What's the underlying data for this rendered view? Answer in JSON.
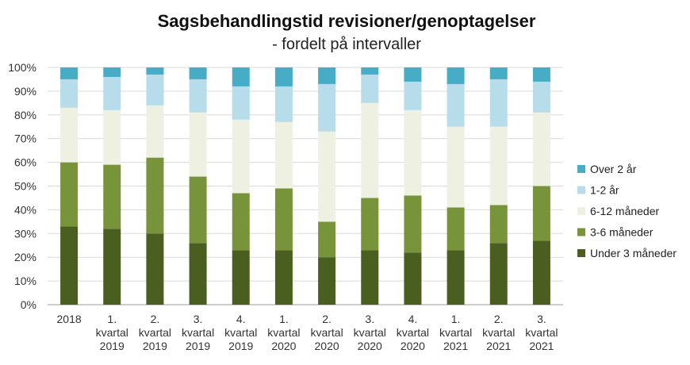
{
  "chart_data": {
    "type": "bar",
    "stacked": true,
    "title": "Sagsbehandlingstid revisioner/genoptagelser",
    "subtitle": "- fordelt på intervaller",
    "ylim": [
      0,
      100
    ],
    "ytick_labels": [
      "0%",
      "10%",
      "20%",
      "30%",
      "40%",
      "50%",
      "60%",
      "70%",
      "80%",
      "90%",
      "100%"
    ],
    "categories": [
      [
        "2018"
      ],
      [
        "1.",
        "kvartal",
        "2019"
      ],
      [
        "2.",
        "kvartal",
        "2019"
      ],
      [
        "3.",
        "kvartal",
        "2019"
      ],
      [
        "4.",
        "kvartal",
        "2019"
      ],
      [
        "1.",
        "kvartal",
        "2020"
      ],
      [
        "2.",
        "kvartal",
        "2020"
      ],
      [
        "3.",
        "kvartal",
        "2020"
      ],
      [
        "4.",
        "kvartal",
        "2020"
      ],
      [
        "1.",
        "kvartal",
        "2021"
      ],
      [
        "2.",
        "kvartal",
        "2021"
      ],
      [
        "3.",
        "kvartal",
        "2021"
      ]
    ],
    "series": [
      {
        "name": "Under 3 måneder",
        "color": "#4a5e1f",
        "values": [
          33,
          32,
          30,
          26,
          23,
          23,
          20,
          23,
          22,
          23,
          26,
          27
        ]
      },
      {
        "name": "3-6 måneder",
        "color": "#77943a",
        "values": [
          27,
          27,
          32,
          28,
          24,
          26,
          15,
          22,
          24,
          18,
          16,
          23
        ]
      },
      {
        "name": "6-12 måneder",
        "color": "#eef1e2",
        "values": [
          23,
          23,
          22,
          27,
          31,
          28,
          38,
          40,
          36,
          34,
          33,
          31
        ]
      },
      {
        "name": "1-2 år",
        "color": "#b6dde9",
        "values": [
          12,
          14,
          13,
          14,
          14,
          15,
          20,
          12,
          12,
          18,
          20,
          13
        ]
      },
      {
        "name": "Over 2 år",
        "color": "#47acc6",
        "values": [
          5,
          4,
          3,
          5,
          8,
          8,
          7,
          3,
          6,
          7,
          5,
          6
        ]
      }
    ],
    "legend_order": [
      "Over 2 år",
      "1-2 år",
      "6-12 måneder",
      "3-6 måneder",
      "Under 3 måneder"
    ],
    "legend_position": "right",
    "grid": true
  }
}
